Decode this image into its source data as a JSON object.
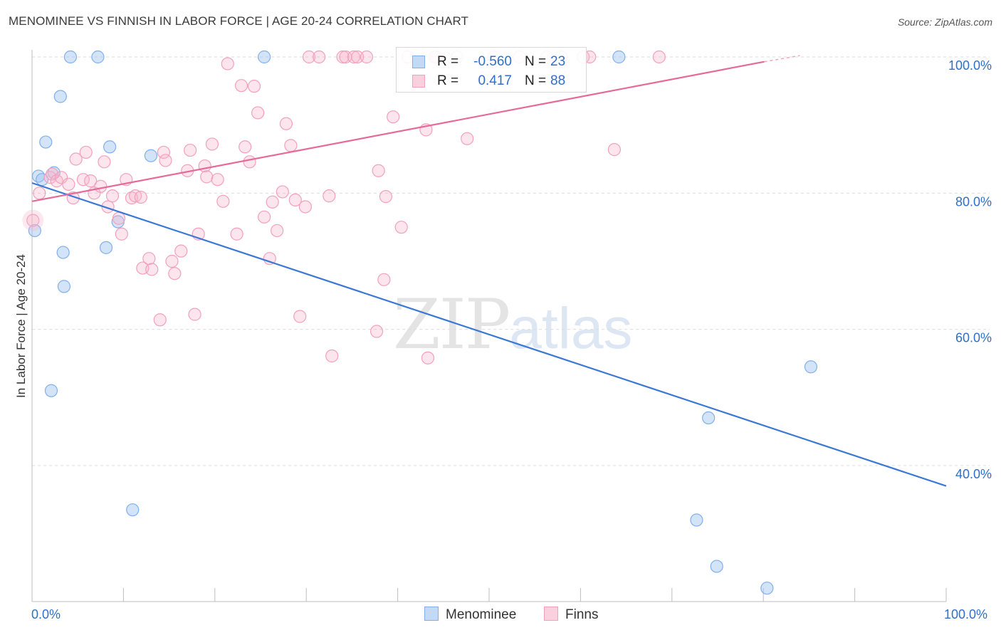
{
  "title": "MENOMINEE VS FINNISH IN LABOR FORCE | AGE 20-24 CORRELATION CHART",
  "source": "Source: ZipAtlas.com",
  "watermark": {
    "zip": "ZIP",
    "atlas": "atlas"
  },
  "colors": {
    "menominee": "#7fb0ec",
    "finns": "#f2a0bb",
    "menominee_line": "#3a78d4",
    "finns_line": "#e66a97",
    "axis_text": "#2f6fc8"
  },
  "legend": {
    "rows": [
      {
        "r_label": "R =",
        "r_value": "-0.560",
        "n_label": "N =",
        "n_value": "23"
      },
      {
        "r_label": "R =",
        "r_value": "0.417",
        "n_label": "N =",
        "n_value": "88"
      }
    ]
  },
  "bottom_legend": {
    "menominee": "Menominee",
    "finns": "Finns"
  },
  "chart_data": {
    "type": "scatter",
    "title": "MENOMINEE VS FINNISH IN LABOR FORCE | AGE 20-24 CORRELATION CHART",
    "xlabel": "",
    "ylabel": "In Labor Force | Age 20-24",
    "xlim": [
      0,
      100
    ],
    "ylim": [
      18,
      104
    ],
    "x_tick_labels": [
      "0.0%",
      "100.0%"
    ],
    "y_ticks": [
      40,
      60,
      80,
      100
    ],
    "y_tick_labels": [
      "40.0%",
      "60.0%",
      "80.0%",
      "100.0%"
    ],
    "grid": true,
    "series": [
      {
        "name": "Menominee",
        "points": [
          [
            0.3,
            74.5
          ],
          [
            0.7,
            82.5
          ],
          [
            1.1,
            82.0
          ],
          [
            1.5,
            87.5
          ],
          [
            2.1,
            51.0
          ],
          [
            2.4,
            83.0
          ],
          [
            3.1,
            94.2
          ],
          [
            3.4,
            71.3
          ],
          [
            3.5,
            66.3
          ],
          [
            4.2,
            100.0
          ],
          [
            7.2,
            100.0
          ],
          [
            8.1,
            72.0
          ],
          [
            8.5,
            86.8
          ],
          [
            9.4,
            75.8
          ],
          [
            11.0,
            33.5
          ],
          [
            13.0,
            85.5
          ],
          [
            25.4,
            100.0
          ],
          [
            64.2,
            100.0
          ],
          [
            72.7,
            32.0
          ],
          [
            74.0,
            47.0
          ],
          [
            74.9,
            25.2
          ],
          [
            80.4,
            22.0
          ],
          [
            85.2,
            54.5
          ]
        ],
        "trend": {
          "x": [
            0.0,
            100.0
          ],
          "y": [
            81.5,
            37.0
          ]
        }
      },
      {
        "name": "Finns",
        "points": [
          [
            0.1,
            76.0
          ],
          [
            0.8,
            80.0
          ],
          [
            2.0,
            82.3
          ],
          [
            2.2,
            82.8
          ],
          [
            2.7,
            81.8
          ],
          [
            3.2,
            82.3
          ],
          [
            4.0,
            81.3
          ],
          [
            4.5,
            79.3
          ],
          [
            4.8,
            85.0
          ],
          [
            5.6,
            82.0
          ],
          [
            5.9,
            86.0
          ],
          [
            6.4,
            81.8
          ],
          [
            6.8,
            80.0
          ],
          [
            7.5,
            81.0
          ],
          [
            7.9,
            84.6
          ],
          [
            8.3,
            78.0
          ],
          [
            8.8,
            79.6
          ],
          [
            9.5,
            76.3
          ],
          [
            9.8,
            74.0
          ],
          [
            10.3,
            82.0
          ],
          [
            10.9,
            79.3
          ],
          [
            11.3,
            79.6
          ],
          [
            11.9,
            79.4
          ],
          [
            12.1,
            69.0
          ],
          [
            12.8,
            70.4
          ],
          [
            13.1,
            68.8
          ],
          [
            14.0,
            61.4
          ],
          [
            14.4,
            86.0
          ],
          [
            14.6,
            84.8
          ],
          [
            15.3,
            70.0
          ],
          [
            15.6,
            68.2
          ],
          [
            16.3,
            71.5
          ],
          [
            17.0,
            83.3
          ],
          [
            17.3,
            86.3
          ],
          [
            17.8,
            62.2
          ],
          [
            18.2,
            74.0
          ],
          [
            18.9,
            84.0
          ],
          [
            19.1,
            82.4
          ],
          [
            19.7,
            87.2
          ],
          [
            20.3,
            82.0
          ],
          [
            20.9,
            78.8
          ],
          [
            21.4,
            99.0
          ],
          [
            22.4,
            74.0
          ],
          [
            22.9,
            95.8
          ],
          [
            23.3,
            86.8
          ],
          [
            23.8,
            84.6
          ],
          [
            24.3,
            95.7
          ],
          [
            24.7,
            91.8
          ],
          [
            25.4,
            76.5
          ],
          [
            26.0,
            70.4
          ],
          [
            26.3,
            78.7
          ],
          [
            26.8,
            74.5
          ],
          [
            27.4,
            80.2
          ],
          [
            27.8,
            90.2
          ],
          [
            28.3,
            87.0
          ],
          [
            28.8,
            79.0
          ],
          [
            29.3,
            61.9
          ],
          [
            29.9,
            78.0
          ],
          [
            30.3,
            100.0
          ],
          [
            31.4,
            100.0
          ],
          [
            32.5,
            79.6
          ],
          [
            32.8,
            56.1
          ],
          [
            34.0,
            100.0
          ],
          [
            34.3,
            100.0
          ],
          [
            35.2,
            100.0
          ],
          [
            35.6,
            100.0
          ],
          [
            36.6,
            100.0
          ],
          [
            37.7,
            59.7
          ],
          [
            37.9,
            83.3
          ],
          [
            38.5,
            67.3
          ],
          [
            38.7,
            79.5
          ],
          [
            39.5,
            91.2
          ],
          [
            40.4,
            75.0
          ],
          [
            41.1,
            100.0
          ],
          [
            43.1,
            89.3
          ],
          [
            43.3,
            55.8
          ],
          [
            44.2,
            100.0
          ],
          [
            46.5,
            100.0
          ],
          [
            47.6,
            88.0
          ],
          [
            50.5,
            100.0
          ],
          [
            60.3,
            100.0
          ],
          [
            63.7,
            86.4
          ],
          [
            68.6,
            100.0
          ],
          [
            44.0,
            100.0
          ],
          [
            53.3,
            100.0
          ],
          [
            56.3,
            100.0
          ],
          [
            57.9,
            100.0
          ],
          [
            61.0,
            100.0
          ]
        ],
        "trend": {
          "x": [
            0.0,
            80.1
          ],
          "y": [
            78.8,
            99.3
          ],
          "dashed_x": [
            80.1,
            84.0
          ],
          "dashed_y": [
            99.3,
            100.2
          ]
        }
      }
    ]
  }
}
